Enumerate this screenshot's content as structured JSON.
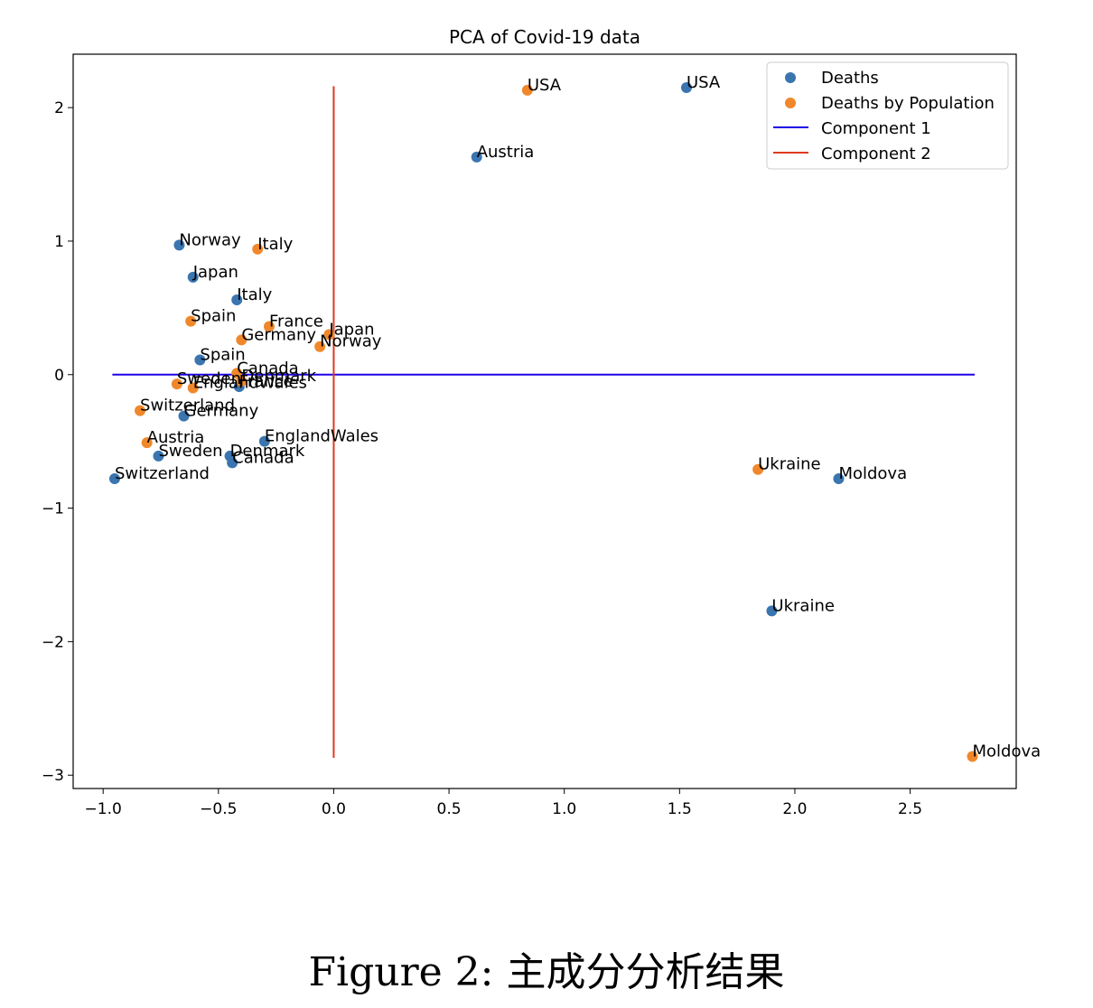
{
  "caption": "Figure 2: 主成分分析结果",
  "chart_data": {
    "type": "scatter",
    "title": "PCA of Covid-19 data",
    "xlabel": "",
    "ylabel": "",
    "xlim": [
      -1.13,
      2.96
    ],
    "ylim": [
      -3.1,
      2.4
    ],
    "xticks": [
      -1.0,
      -0.5,
      0.0,
      0.5,
      1.0,
      1.5,
      2.0,
      2.5
    ],
    "xtick_labels": [
      "−1.0",
      "−0.5",
      "0.0",
      "0.5",
      "1.0",
      "1.5",
      "2.0",
      "2.5"
    ],
    "yticks": [
      -3,
      -2,
      -1,
      0,
      1,
      2
    ],
    "ytick_labels": [
      "−3",
      "−2",
      "−1",
      "0",
      "1",
      "2"
    ],
    "grid": false,
    "legend_position": "top-right",
    "series": [
      {
        "name": "Deaths",
        "color": "#3a75b0",
        "points": [
          {
            "label": "USA",
            "x": 1.53,
            "y": 2.15
          },
          {
            "label": "Austria",
            "x": 0.62,
            "y": 1.63
          },
          {
            "label": "Norway",
            "x": -0.67,
            "y": 0.97
          },
          {
            "label": "Japan",
            "x": -0.61,
            "y": 0.73
          },
          {
            "label": "Italy",
            "x": -0.42,
            "y": 0.56
          },
          {
            "label": "Spain",
            "x": -0.58,
            "y": 0.11
          },
          {
            "label": "France",
            "x": -0.41,
            "y": -0.09
          },
          {
            "label": "Germany",
            "x": -0.65,
            "y": -0.31
          },
          {
            "label": "EnglandWales",
            "x": -0.3,
            "y": -0.5
          },
          {
            "label": "Denmark",
            "x": -0.45,
            "y": -0.61
          },
          {
            "label": "Sweden",
            "x": -0.76,
            "y": -0.61
          },
          {
            "label": "Canada",
            "x": -0.44,
            "y": -0.66
          },
          {
            "label": "Switzerland",
            "x": -0.95,
            "y": -0.78
          },
          {
            "label": "Moldova",
            "x": 2.19,
            "y": -0.78
          },
          {
            "label": "Ukraine",
            "x": 1.9,
            "y": -1.77
          }
        ]
      },
      {
        "name": "Deaths by Population",
        "color": "#f0882b",
        "points": [
          {
            "label": "USA",
            "x": 0.84,
            "y": 2.13
          },
          {
            "label": "Italy",
            "x": -0.33,
            "y": 0.94
          },
          {
            "label": "Spain",
            "x": -0.62,
            "y": 0.4
          },
          {
            "label": "France",
            "x": -0.28,
            "y": 0.36
          },
          {
            "label": "Japan",
            "x": -0.02,
            "y": 0.3
          },
          {
            "label": "Germany",
            "x": -0.4,
            "y": 0.26
          },
          {
            "label": "Norway",
            "x": -0.06,
            "y": 0.21
          },
          {
            "label": "Canada",
            "x": -0.42,
            "y": 0.01
          },
          {
            "label": "Sweden",
            "x": -0.68,
            "y": -0.07
          },
          {
            "label": "Denmark",
            "x": -0.4,
            "y": -0.05
          },
          {
            "label": "EnglandWales",
            "x": -0.61,
            "y": -0.1
          },
          {
            "label": "Switzerland",
            "x": -0.84,
            "y": -0.27
          },
          {
            "label": "Austria",
            "x": -0.81,
            "y": -0.51
          },
          {
            "label": "Ukraine",
            "x": 1.84,
            "y": -0.71
          },
          {
            "label": "Moldova",
            "x": 2.77,
            "y": -2.86
          }
        ]
      }
    ],
    "lines": [
      {
        "name": "Component 1",
        "color": "#1f00e6",
        "x": [
          -0.96,
          2.78
        ],
        "y": [
          0.0,
          0.0
        ]
      },
      {
        "name": "Component 2",
        "color": "#e03a1e",
        "x": [
          0.0,
          0.0
        ],
        "y": [
          2.16,
          -2.87
        ]
      }
    ]
  }
}
